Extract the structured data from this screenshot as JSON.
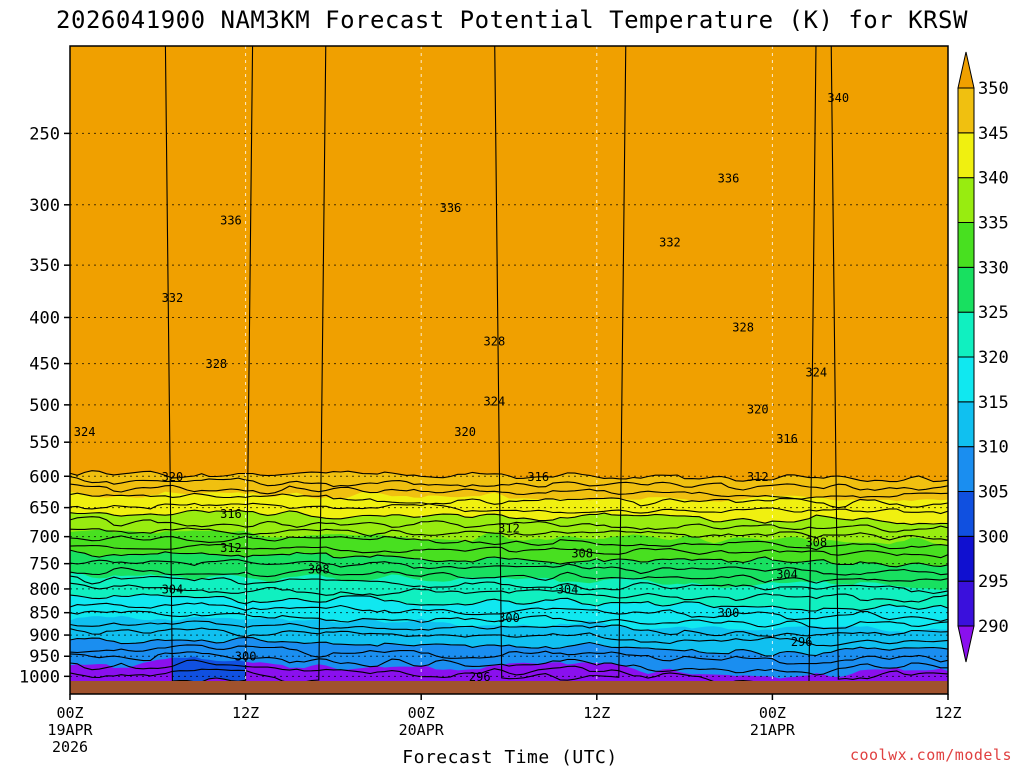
{
  "title": "2026041900 NAM3KM Forecast Potential Temperature (K) for KRSW",
  "credit": "coolwx.com/models",
  "chart_data": {
    "type": "heatmap",
    "title": "2026041900 NAM3KM Forecast Potential Temperature (K) for KRSW",
    "xlabel": "Forecast Time (UTC)",
    "ylabel": "",
    "x_ticks": [
      {
        "hour": 0,
        "lines": [
          "00Z",
          "19APR",
          "2026"
        ]
      },
      {
        "hour": 12,
        "lines": [
          "12Z"
        ]
      },
      {
        "hour": 24,
        "lines": [
          "00Z",
          "20APR"
        ]
      },
      {
        "hour": 36,
        "lines": [
          "12Z"
        ]
      },
      {
        "hour": 48,
        "lines": [
          "00Z",
          "21APR"
        ]
      },
      {
        "hour": 60,
        "lines": [
          "12Z"
        ]
      }
    ],
    "xlim": [
      0,
      60
    ],
    "y_ticks": [
      250,
      300,
      350,
      400,
      450,
      500,
      550,
      600,
      650,
      700,
      750,
      800,
      850,
      900,
      950,
      1000
    ],
    "ylim": [
      1012,
      200
    ],
    "y_scale": "log",
    "grid": true,
    "colorbar": {
      "levels": [
        290,
        295,
        300,
        305,
        310,
        315,
        320,
        325,
        330,
        335,
        340,
        345,
        350
      ],
      "colors": [
        "#8a10ee",
        "#3a10dc",
        "#1010d0",
        "#1050e0",
        "#1a8ef0",
        "#10c0f0",
        "#10e8f0",
        "#10f0c0",
        "#18e060",
        "#48e020",
        "#98ec10",
        "#f0f010",
        "#f0c010",
        "#f0a000"
      ]
    },
    "contour_interval": 4,
    "contour_labels": [
      {
        "value": 340,
        "hour": 52.5,
        "p": 228
      },
      {
        "value": 336,
        "hour": 11,
        "p": 312
      },
      {
        "value": 336,
        "hour": 26,
        "p": 302
      },
      {
        "value": 336,
        "hour": 45,
        "p": 280
      },
      {
        "value": 332,
        "hour": 7,
        "p": 380
      },
      {
        "value": 332,
        "hour": 41,
        "p": 330
      },
      {
        "value": 328,
        "hour": 10,
        "p": 450
      },
      {
        "value": 328,
        "hour": 29,
        "p": 425
      },
      {
        "value": 328,
        "hour": 46,
        "p": 410
      },
      {
        "value": 324,
        "hour": 1,
        "p": 535
      },
      {
        "value": 324,
        "hour": 29,
        "p": 495
      },
      {
        "value": 324,
        "hour": 51,
        "p": 460
      },
      {
        "value": 320,
        "hour": 7,
        "p": 600
      },
      {
        "value": 320,
        "hour": 27,
        "p": 535
      },
      {
        "value": 320,
        "hour": 47,
        "p": 505
      },
      {
        "value": 316,
        "hour": 11,
        "p": 660
      },
      {
        "value": 316,
        "hour": 32,
        "p": 600
      },
      {
        "value": 316,
        "hour": 49,
        "p": 545
      },
      {
        "value": 312,
        "hour": 11,
        "p": 720
      },
      {
        "value": 312,
        "hour": 30,
        "p": 685
      },
      {
        "value": 312,
        "hour": 47,
        "p": 600
      },
      {
        "value": 308,
        "hour": 17,
        "p": 760
      },
      {
        "value": 308,
        "hour": 35,
        "p": 730
      },
      {
        "value": 308,
        "hour": 51,
        "p": 710
      },
      {
        "value": 304,
        "hour": 7,
        "p": 800
      },
      {
        "value": 304,
        "hour": 34,
        "p": 800
      },
      {
        "value": 304,
        "hour": 49,
        "p": 770
      },
      {
        "value": 300,
        "hour": 12,
        "p": 950
      },
      {
        "value": 300,
        "hour": 30,
        "p": 860
      },
      {
        "value": 300,
        "hour": 45,
        "p": 850
      },
      {
        "value": 296,
        "hour": 28,
        "p": 1000
      },
      {
        "value": 296,
        "hour": 50,
        "p": 915
      }
    ]
  }
}
